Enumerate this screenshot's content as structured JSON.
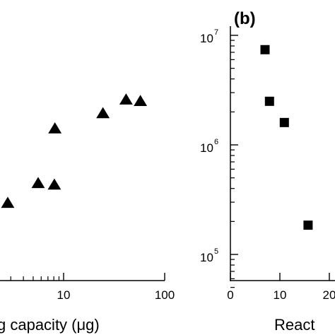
{
  "chart_data": [
    {
      "type": "scatter",
      "xscale": "log",
      "xlim": [
        1,
        100
      ],
      "xticks": [
        {
          "value": 10,
          "label": "10"
        },
        {
          "value": 100,
          "label": "100"
        }
      ],
      "xlabel": "g capacity (μg)",
      "marker": "triangle",
      "color": "#000000",
      "points": [
        {
          "x": 2.8,
          "y": 2.55
        },
        {
          "x": 5.6,
          "y": 3.2
        },
        {
          "x": 8.1,
          "y": 3.15
        },
        {
          "x": 8.2,
          "y": 5.0
        },
        {
          "x": 24.5,
          "y": 5.5
        },
        {
          "x": 41.5,
          "y": 5.95
        },
        {
          "x": 57.5,
          "y": 5.9
        }
      ]
    },
    {
      "type": "scatter",
      "panel_label": "(b)",
      "yscale": "log",
      "ylim": [
        50000,
        10000000
      ],
      "yticks": [
        {
          "value": 10000000,
          "base": "10",
          "exp": "7"
        },
        {
          "value": 1000000,
          "base": "10",
          "exp": "6"
        },
        {
          "value": 100000,
          "base": "10",
          "exp": "5"
        }
      ],
      "xlim": [
        0,
        20
      ],
      "xticks": [
        {
          "value": 0,
          "label": "0"
        },
        {
          "value": 10,
          "label": "10"
        },
        {
          "value": 20,
          "label": "20"
        }
      ],
      "xlabel": "React",
      "marker": "square",
      "color": "#000000",
      "points": [
        {
          "x": 7,
          "y": 7400000
        },
        {
          "x": 7.9,
          "y": 2500000
        },
        {
          "x": 10.9,
          "y": 1600000
        },
        {
          "x": 15.7,
          "y": 185000
        }
      ]
    }
  ]
}
